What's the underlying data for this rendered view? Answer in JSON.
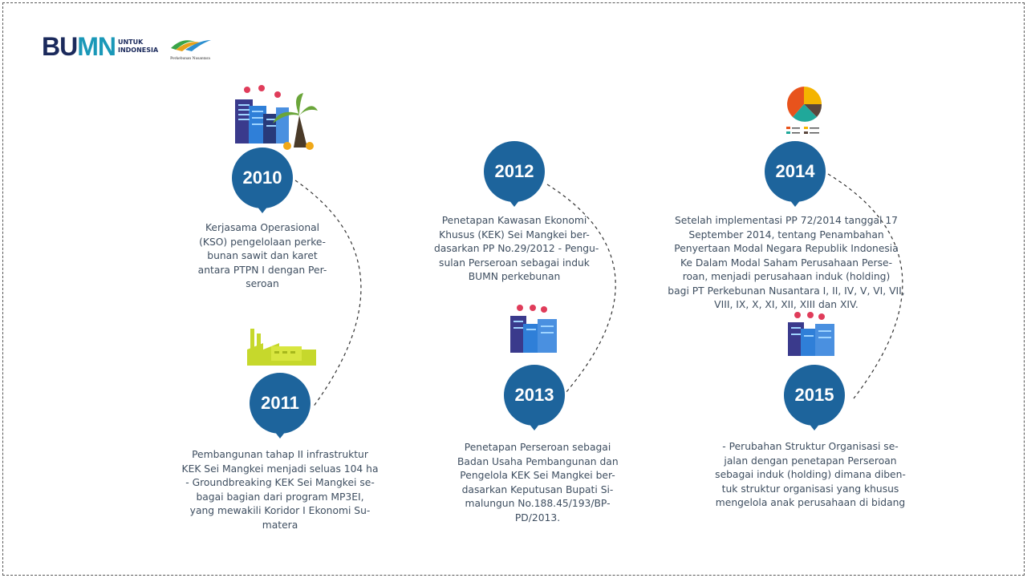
{
  "logos": {
    "bumn_text": "BUMN",
    "bumn_tagline": [
      "UNTUK",
      "INDONESIA"
    ],
    "ptpn_text": "Perkebunan Nusantara"
  },
  "colors": {
    "pin": "#1d649c",
    "text": "#3e4e60",
    "bumn_dark": "#1b2a5c",
    "bumn_teal": "#1a98b8"
  },
  "timeline": [
    {
      "year": "2010",
      "icon": "city-palm-icon",
      "lines": [
        "Kerjasama Operasional",
        "(KSO) pengelolaan perke-",
        "bunan sawit dan karet",
        "antara PTPN I dengan Per-",
        "seroan"
      ]
    },
    {
      "year": "2011",
      "icon": "factory-icon",
      "lines": [
        "Pembangunan tahap II infrastruktur",
        "KEK Sei Mangkei menjadi seluas 104 ha",
        "- Groundbreaking KEK Sei Mangkei se-",
        "bagai bagian dari program MP3EI,",
        "yang mewakili Koridor I Ekonomi Su-",
        "matera"
      ]
    },
    {
      "year": "2012",
      "icon": "",
      "lines": [
        "Penetapan Kawasan Ekonomi",
        "Khusus (KEK) Sei Mangkei ber-",
        "dasarkan PP No.29/2012 - Pengu-",
        "sulan Perseroan sebagai induk",
        "BUMN perkebunan"
      ]
    },
    {
      "year": "2013",
      "icon": "city-icon",
      "lines": [
        "Penetapan Perseroan sebagai",
        "Badan Usaha Pembangunan dan",
        "Pengelola KEK Sei Mangkei ber-",
        "dasarkan Keputusan Bupati Si-",
        "malungun No.188.45/193/BP-",
        "PD/2013."
      ]
    },
    {
      "year": "2014",
      "icon": "pie-chart-icon",
      "lines": [
        "Setelah implementasi PP 72/2014 tanggal 17",
        "September 2014, tentang Penambahan",
        "Penyertaan Modal Negara Republik Indonesia",
        "Ke Dalam Modal Saham Perusahaan Perse-",
        "roan, menjadi perusahaan induk (holding)",
        "bagi PT Perkebunan Nusantara I, II, IV, V, VI, VII,",
        "VIII, IX, X, XI, XII, XIII dan XIV."
      ]
    },
    {
      "year": "2015",
      "icon": "city-icon",
      "lines": [
        "- Perubahan Struktur Organisasi se-",
        "jalan dengan penetapan Perseroan",
        "sebagai induk (holding) dimana diben-",
        "tuk struktur organisasi yang khusus",
        "mengelola anak perusahaan di bidang"
      ]
    }
  ]
}
